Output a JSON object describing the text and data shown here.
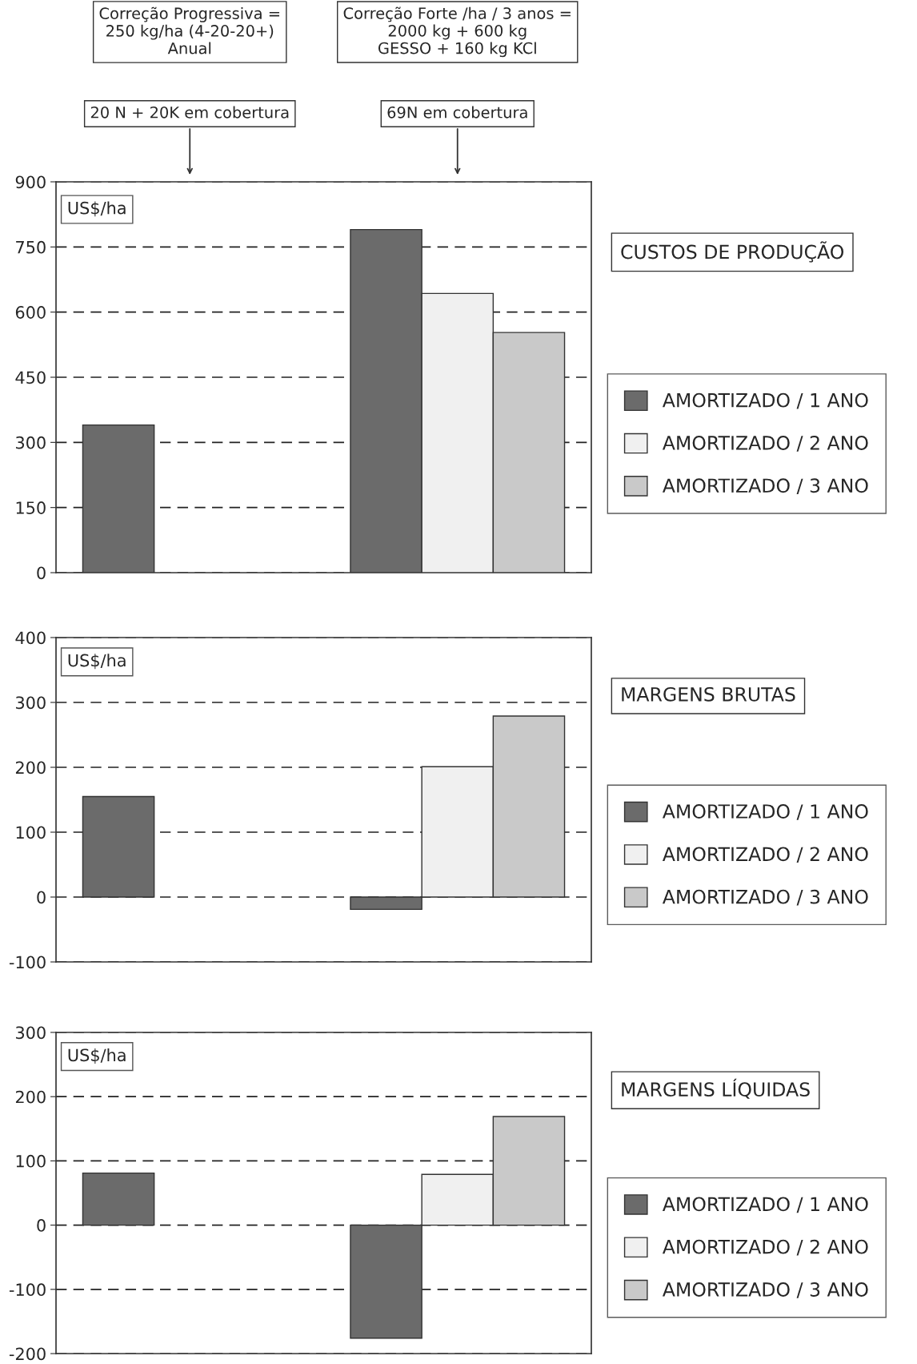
{
  "chart_data": [
    {
      "type": "bar",
      "ylabel": "US$/ha",
      "categories": [
        null,
        null
      ],
      "series": [
        {
          "name": "AMORTIZADO / 1 ANO",
          "color": "#6b6b6b",
          "values": [
            340,
            790
          ]
        },
        {
          "name": "AMORTIZADO / 2 ANO",
          "color": "#f0f0f0",
          "values": [
            null,
            643
          ]
        },
        {
          "name": "AMORTIZADO / 3 ANO",
          "color": "#c9c9c9",
          "values": [
            null,
            553
          ]
        }
      ],
      "ylim": [
        0,
        900
      ],
      "yticks": [
        0,
        150,
        300,
        450,
        600,
        750,
        900
      ],
      "grid": "y",
      "line_style": "dashed",
      "legend": "right",
      "annotations": [
        "CUSTOS DE PRODUÇÃO",
        "Correção Progressiva =\n250 kg/ha (4-20-20+)\nAnual",
        "20 N + 20K em cobertura",
        "Correção Forte /ha / 3 anos =\n2000 kg + 600 kg\nGESSO + 160 kg KCl",
        "69N em cobertura"
      ]
    },
    {
      "type": "bar",
      "ylabel": "US$/ha",
      "categories": [
        null,
        null
      ],
      "annotations": [
        "MARGENS BRUTAS"
      ],
      "series": [
        {
          "name": "AMORTIZADO / 1 ANO",
          "color": "#6b6b6b",
          "values": [
            155,
            -19
          ]
        },
        {
          "name": "AMORTIZADO / 2 ANO",
          "color": "#f0f0f0",
          "values": [
            null,
            201
          ]
        },
        {
          "name": "AMORTIZADO / 3 ANO",
          "color": "#c9c9c9",
          "values": [
            null,
            279
          ]
        }
      ],
      "ylim": [
        -100,
        400
      ],
      "yticks": [
        -100,
        0,
        100,
        200,
        300,
        400
      ],
      "grid": "y",
      "line_style": "dashed",
      "legend": "right"
    },
    {
      "type": "bar",
      "ylabel": "US$/ha",
      "categories": [
        null,
        null
      ],
      "annotations": [
        "MARGENS LÍQUIDAS"
      ],
      "series": [
        {
          "name": "AMORTIZADO / 1 ANO",
          "color": "#6b6b6b",
          "values": [
            81,
            -176
          ]
        },
        {
          "name": "AMORTIZADO / 2 ANO",
          "color": "#f0f0f0",
          "values": [
            null,
            79
          ]
        },
        {
          "name": "AMORTIZADO / 3 ANO",
          "color": "#c9c9c9",
          "values": [
            null,
            169
          ]
        }
      ],
      "ylim": [
        -200,
        300
      ],
      "yticks": [
        -200,
        -100,
        0,
        100,
        200,
        300
      ],
      "grid": "y",
      "line_style": "dashed",
      "legend": "right"
    }
  ]
}
